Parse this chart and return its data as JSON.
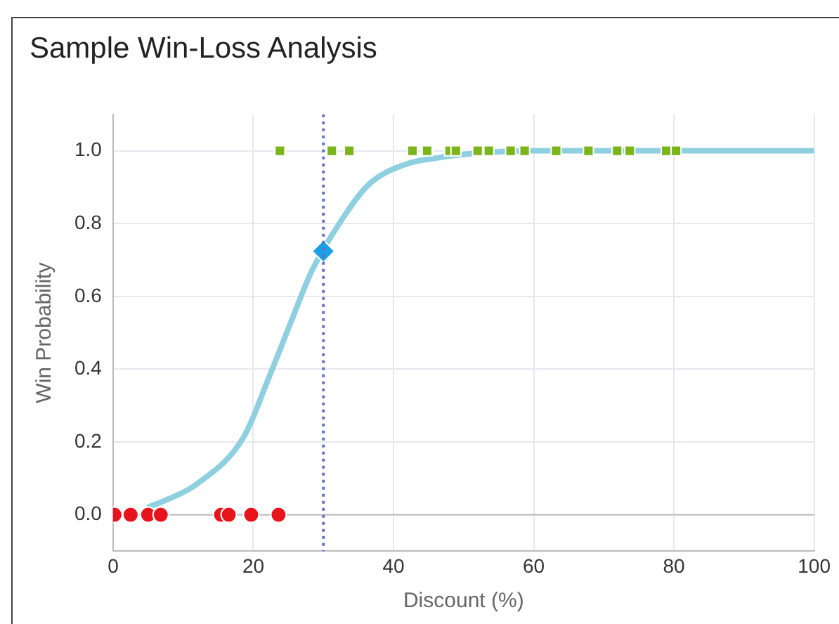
{
  "chart_data": {
    "type": "scatter",
    "title": "Sample Win-Loss Analysis",
    "xlabel": "Discount (%)",
    "ylabel": "Win Probability",
    "xlim": [
      0,
      100
    ],
    "xticks": [
      0,
      20,
      40,
      60,
      80,
      100
    ],
    "ylim": [
      -0.1,
      1.1
    ],
    "yticks": [
      {
        "value": 0,
        "label": "0.0"
      },
      {
        "value": 0.2,
        "label": "0.2"
      },
      {
        "value": 0.4,
        "label": "0.4"
      },
      {
        "value": 0.6,
        "label": "0.6"
      },
      {
        "value": 0.8,
        "label": "0.8"
      },
      {
        "value": 1,
        "label": "1.0"
      }
    ],
    "grid": true,
    "legend": false,
    "ref_lines": [
      {
        "axis": "x",
        "value": 30,
        "color": "#6670c0",
        "line_style": "dotted"
      }
    ],
    "series": [
      {
        "type": "line",
        "color": "#8fd0e0",
        "marker": "none",
        "x": [
          4.9,
          7,
          11.9,
          18.7,
          22.2,
          25.5,
          28.3,
          32.4,
          36.5,
          41.9,
          46,
          50,
          60,
          100
        ],
        "values": [
          0.02,
          0.036,
          0.084,
          0.216,
          0.376,
          0.536,
          0.668,
          0.804,
          0.908,
          0.964,
          0.98,
          0.99,
          1,
          1
        ]
      },
      {
        "color": "#7cb41c",
        "marker": "square",
        "x": [
          23.8,
          31.2,
          33.7,
          42.7,
          44.8,
          48,
          48.9,
          52,
          53.6,
          56.7,
          58.7,
          63.2,
          67.8,
          71.9,
          73.7,
          78.9,
          80.3
        ],
        "values": [
          1,
          1,
          1,
          1,
          1,
          1,
          1,
          1,
          1,
          1,
          1,
          1,
          1,
          1,
          1,
          1,
          1
        ]
      },
      {
        "color": "#e8141c",
        "marker": "circle",
        "x": [
          0.2,
          2.5,
          5,
          6.8,
          15.4,
          16.5,
          19.7,
          23.6
        ],
        "values": [
          0,
          0,
          0,
          0,
          0,
          0,
          0,
          0
        ]
      },
      {
        "color": "#1aa0e6",
        "marker": "diamond",
        "x": [
          30
        ],
        "values": [
          0.724
        ]
      }
    ]
  }
}
